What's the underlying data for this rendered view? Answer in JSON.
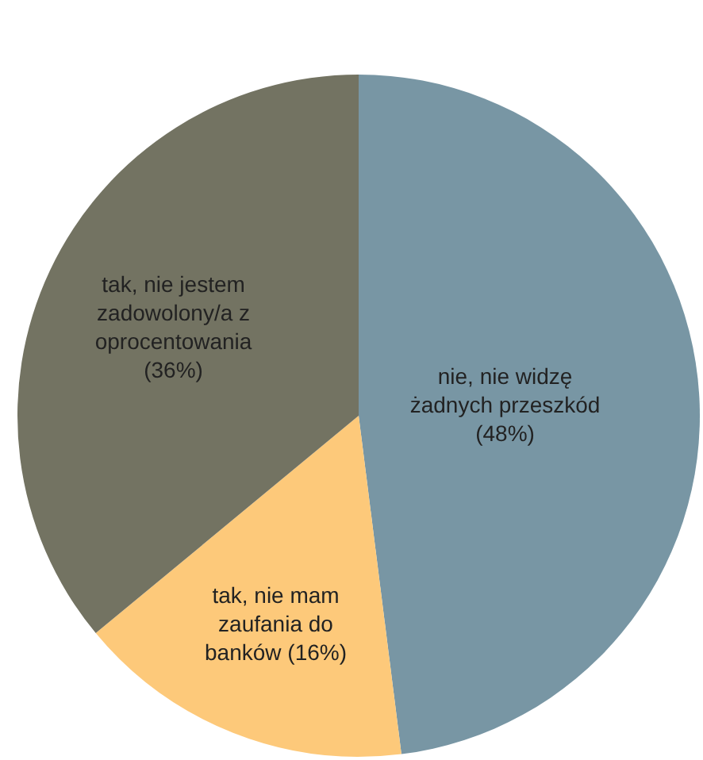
{
  "chart_data": {
    "type": "pie",
    "categories": [
      "nie, nie widzę żadnych przeszkód",
      "tak, nie mam zaufania do banków",
      "tak, nie jestem zadowolony/a z oprocentowania"
    ],
    "values": [
      48,
      16,
      36
    ],
    "colors": [
      "#7896a4",
      "#fdc97a",
      "#737362"
    ],
    "value_labels": [
      "(48%)",
      "(16%)",
      "(36%)"
    ],
    "legend": false
  }
}
